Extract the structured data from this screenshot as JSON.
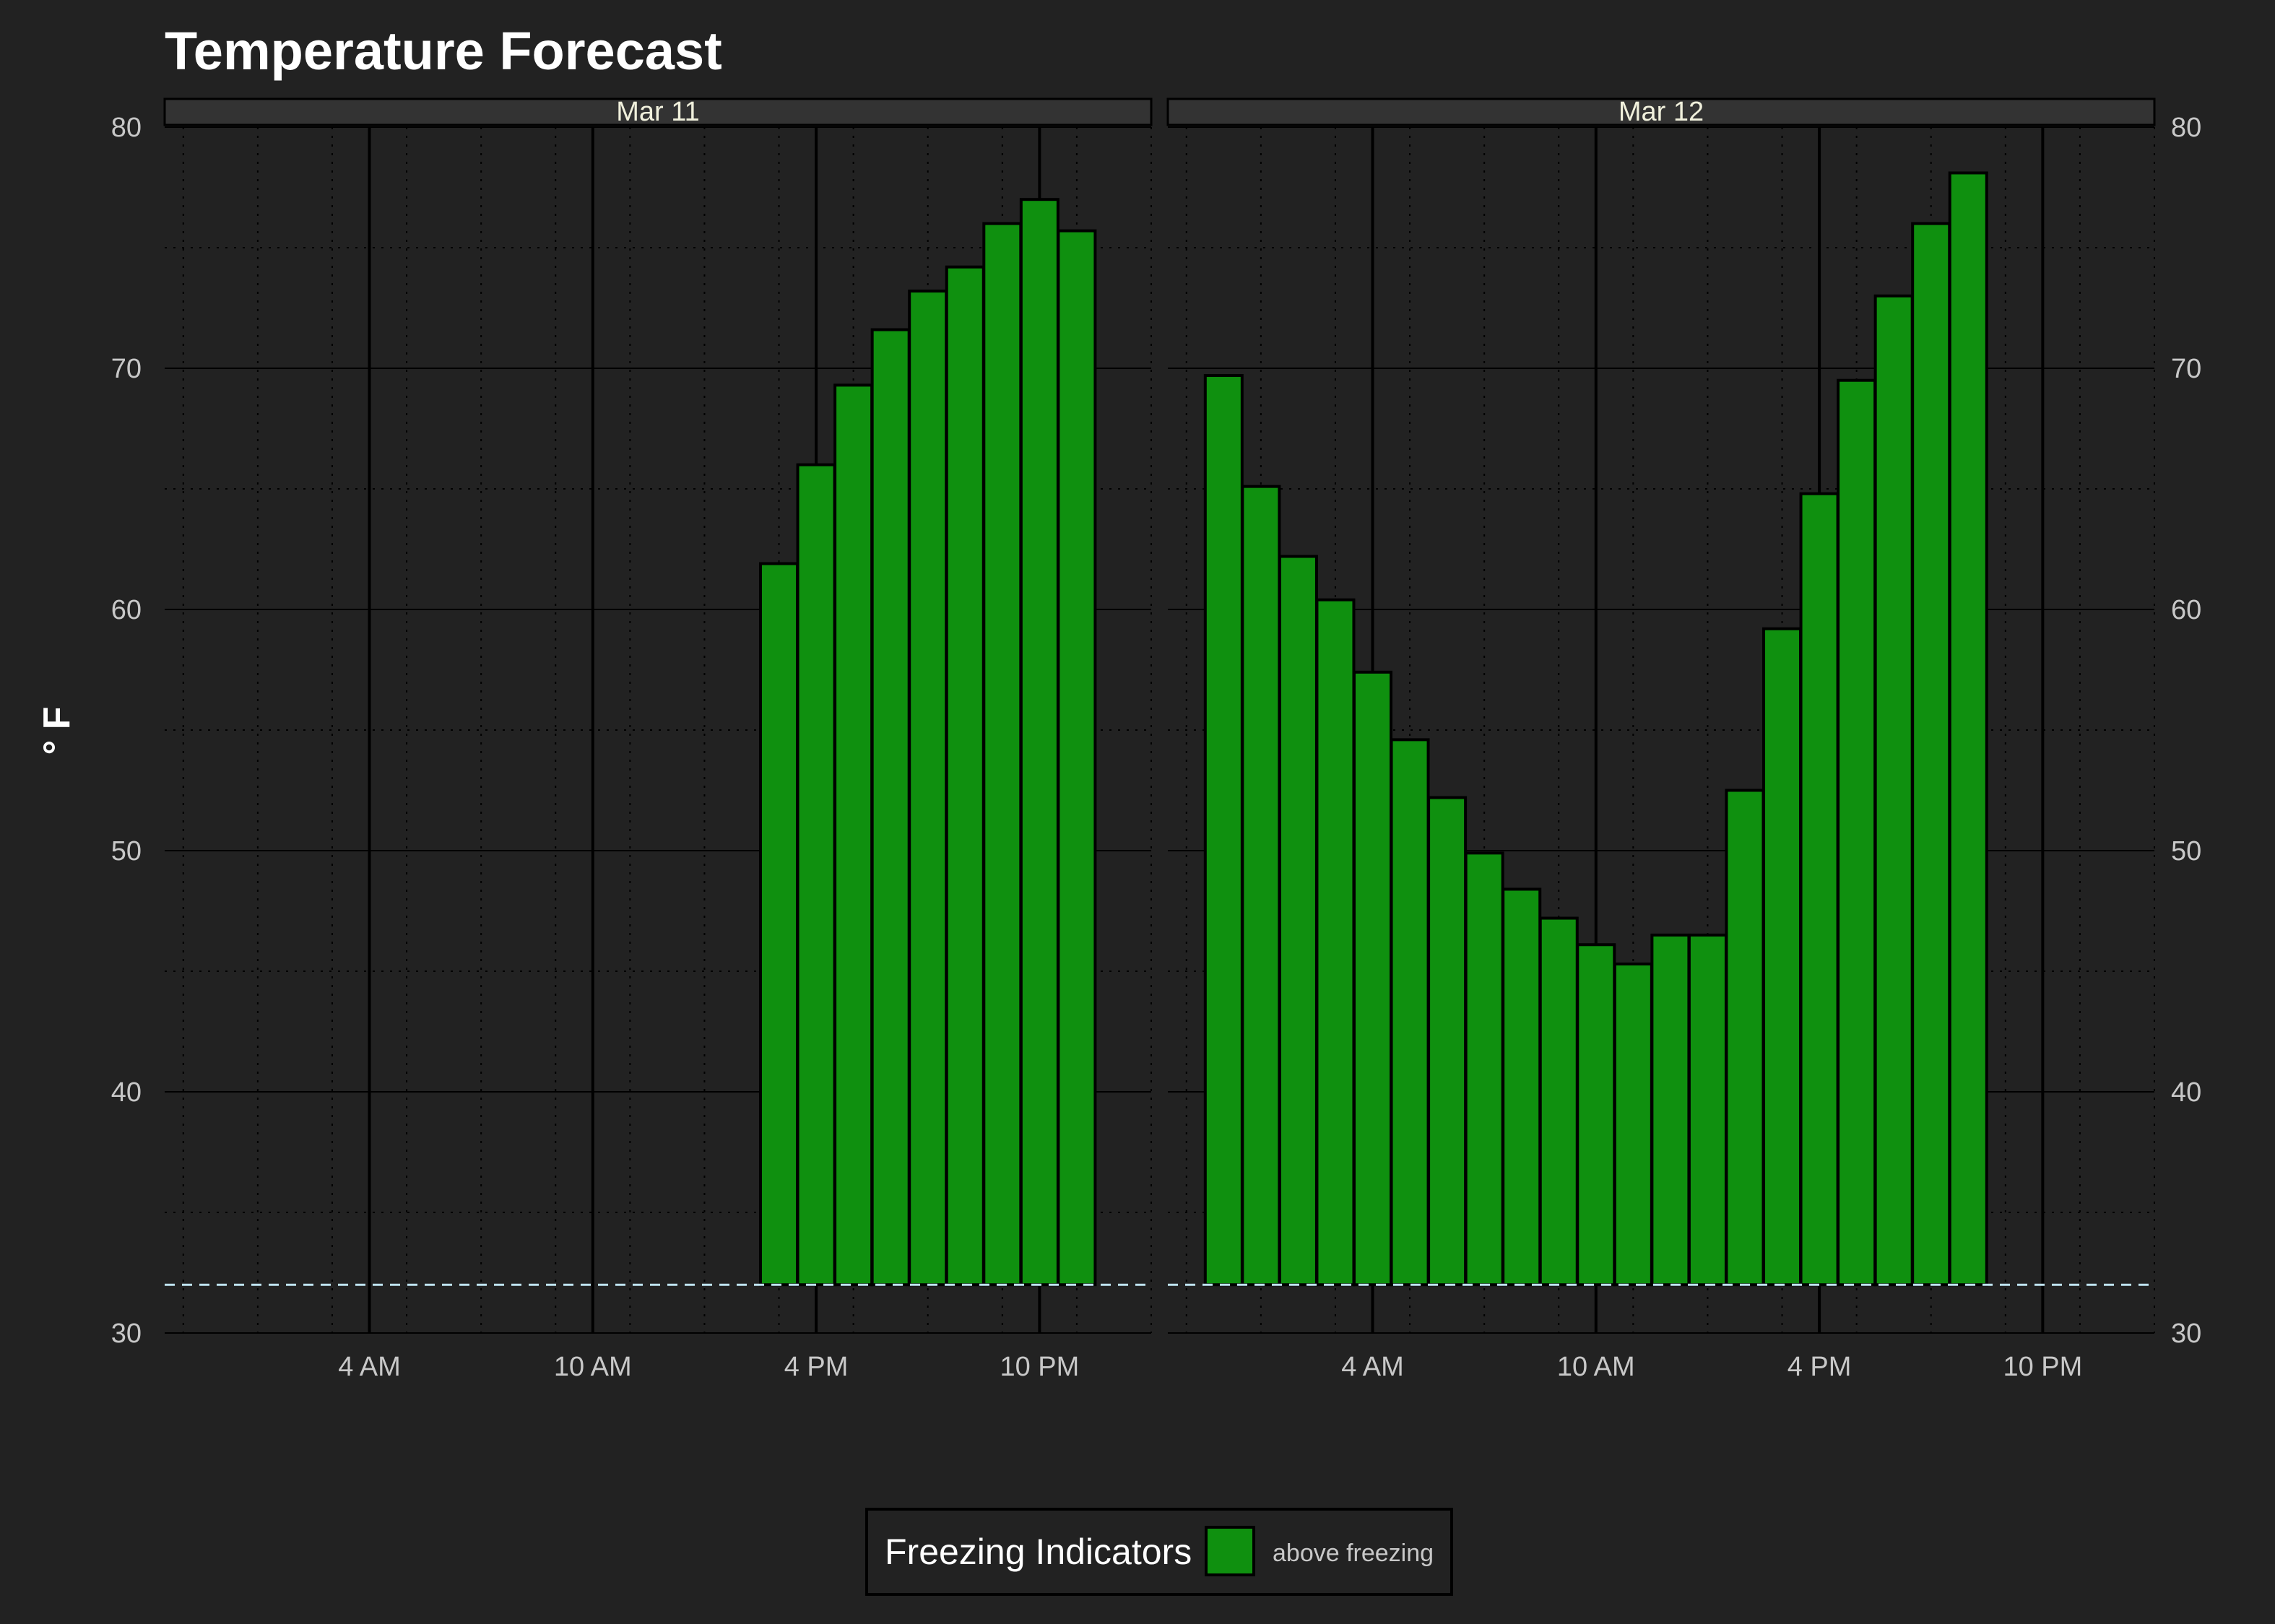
{
  "chart_data": {
    "type": "bar",
    "title": "Temperature Forecast",
    "ylabel": "° F",
    "xlabel": "",
    "ylim": [
      30,
      80
    ],
    "yticks": [
      30,
      40,
      50,
      60,
      70,
      80
    ],
    "xlim_hours": [
      -1.5,
      25
    ],
    "xticks": [
      {
        "hour": 4,
        "label": "4 AM"
      },
      {
        "hour": 10,
        "label": "10 AM"
      },
      {
        "hour": 16,
        "label": "4 PM"
      },
      {
        "hour": 22,
        "label": "10 PM"
      }
    ],
    "freezing_line": 32,
    "bar_color": "#0f900f",
    "facets": [
      {
        "label": "Mar 11",
        "series": [
          {
            "hour": 15,
            "value": 61.9
          },
          {
            "hour": 16,
            "value": 66.0
          },
          {
            "hour": 17,
            "value": 69.3
          },
          {
            "hour": 18,
            "value": 71.6
          },
          {
            "hour": 19,
            "value": 73.2
          },
          {
            "hour": 20,
            "value": 74.2
          },
          {
            "hour": 21,
            "value": 76.0
          },
          {
            "hour": 22,
            "value": 77.0
          },
          {
            "hour": 23,
            "value": 75.7
          }
        ]
      },
      {
        "label": "Mar 12",
        "series": [
          {
            "hour": 0,
            "value": 69.7
          },
          {
            "hour": 1,
            "value": 65.1
          },
          {
            "hour": 2,
            "value": 62.2
          },
          {
            "hour": 3,
            "value": 60.4
          },
          {
            "hour": 4,
            "value": 57.4
          },
          {
            "hour": 5,
            "value": 54.6
          },
          {
            "hour": 6,
            "value": 52.2
          },
          {
            "hour": 7,
            "value": 49.9
          },
          {
            "hour": 8,
            "value": 48.4
          },
          {
            "hour": 9,
            "value": 47.2
          },
          {
            "hour": 10,
            "value": 46.1
          },
          {
            "hour": 11,
            "value": 45.3
          },
          {
            "hour": 12,
            "value": 46.5
          },
          {
            "hour": 13,
            "value": 46.5
          },
          {
            "hour": 14,
            "value": 52.5
          },
          {
            "hour": 15,
            "value": 59.2
          },
          {
            "hour": 16,
            "value": 64.8
          },
          {
            "hour": 17,
            "value": 69.5
          },
          {
            "hour": 18,
            "value": 73.0
          },
          {
            "hour": 19,
            "value": 76.0
          },
          {
            "hour": 20,
            "value": 78.1
          }
        ]
      }
    ],
    "legend": {
      "title": "Freezing Indicators",
      "items": [
        {
          "label": "above freezing",
          "color": "#0f900f"
        }
      ],
      "position": "bottom"
    }
  }
}
